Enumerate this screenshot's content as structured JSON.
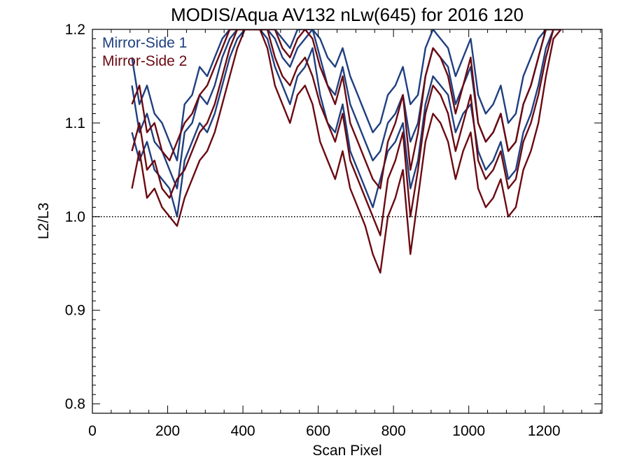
{
  "chart_data": {
    "type": "line",
    "title": "MODIS/Aqua AV132 nLw(645) for 2016 120",
    "xlabel": "Scan Pixel",
    "ylabel": "L2/L3",
    "xlim": [
      0,
      1354
    ],
    "ylim": [
      0.79,
      1.2
    ],
    "xticks": [
      0,
      200,
      400,
      600,
      800,
      1000,
      1200
    ],
    "xtick_labels": [
      "0",
      "200",
      "400",
      "600",
      "800",
      "1000",
      "1200"
    ],
    "yticks": [
      0.8,
      0.9,
      1.0,
      1.1,
      1.2
    ],
    "ytick_labels": [
      "0.8",
      "0.9",
      "1.0",
      "1.1",
      "1.2"
    ],
    "reference_line": {
      "y": 1.0,
      "style": "dotted"
    },
    "legend": {
      "placement": "top-left",
      "entries": [
        "Mirror-Side 1",
        "Mirror-Side 2"
      ]
    },
    "colors": {
      "Mirror-Side 1": "#1f3f7f",
      "Mirror-Side 2": "#6b0a12"
    },
    "x": [
      105,
      125,
      145,
      165,
      185,
      205,
      225,
      245,
      265,
      285,
      305,
      325,
      345,
      365,
      385,
      405,
      425,
      445,
      465,
      485,
      505,
      525,
      545,
      565,
      585,
      605,
      625,
      645,
      665,
      685,
      705,
      725,
      745,
      765,
      785,
      805,
      825,
      845,
      865,
      885,
      905,
      925,
      945,
      965,
      985,
      1005,
      1025,
      1045,
      1065,
      1085,
      1105,
      1125,
      1145,
      1165,
      1185,
      1205,
      1225,
      1245
    ],
    "series": [
      {
        "name": "Mirror-Side 1",
        "values": [
          1.14,
          1.09,
          1.11,
          1.08,
          1.07,
          1.05,
          1.03,
          1.09,
          1.1,
          1.13,
          1.12,
          1.14,
          1.17,
          1.19,
          1.2,
          1.2,
          1.2,
          1.2,
          1.2,
          1.19,
          1.17,
          1.16,
          1.18,
          1.19,
          1.2,
          1.17,
          1.14,
          1.13,
          1.16,
          1.12,
          1.1,
          1.08,
          1.06,
          1.07,
          1.1,
          1.11,
          1.13,
          1.08,
          1.1,
          1.15,
          1.18,
          1.17,
          1.16,
          1.12,
          1.14,
          1.16,
          1.1,
          1.08,
          1.09,
          1.11,
          1.07,
          1.08,
          1.12,
          1.14,
          1.17,
          1.2,
          1.2,
          1.2
        ]
      },
      {
        "name": "Mirror-Side 1",
        "values": [
          1.09,
          1.06,
          1.08,
          1.05,
          1.04,
          1.03,
          1.0,
          1.06,
          1.08,
          1.1,
          1.09,
          1.11,
          1.14,
          1.17,
          1.19,
          1.2,
          1.2,
          1.2,
          1.19,
          1.16,
          1.14,
          1.12,
          1.15,
          1.16,
          1.18,
          1.13,
          1.1,
          1.09,
          1.12,
          1.07,
          1.05,
          1.03,
          1.01,
          1.04,
          1.07,
          1.08,
          1.1,
          1.03,
          1.06,
          1.12,
          1.15,
          1.14,
          1.13,
          1.09,
          1.11,
          1.12,
          1.07,
          1.05,
          1.06,
          1.08,
          1.04,
          1.05,
          1.09,
          1.11,
          1.14,
          1.18,
          1.2,
          1.2
        ]
      },
      {
        "name": "Mirror-Side 1",
        "values": [
          1.17,
          1.12,
          1.14,
          1.11,
          1.1,
          1.08,
          1.06,
          1.12,
          1.13,
          1.16,
          1.15,
          1.17,
          1.19,
          1.2,
          1.2,
          1.2,
          1.2,
          1.2,
          1.2,
          1.2,
          1.19,
          1.18,
          1.2,
          1.2,
          1.2,
          1.19,
          1.17,
          1.16,
          1.18,
          1.15,
          1.13,
          1.11,
          1.09,
          1.1,
          1.13,
          1.14,
          1.16,
          1.12,
          1.13,
          1.18,
          1.2,
          1.19,
          1.18,
          1.15,
          1.17,
          1.19,
          1.13,
          1.11,
          1.12,
          1.14,
          1.1,
          1.11,
          1.15,
          1.17,
          1.19,
          1.2,
          1.2,
          1.2
        ]
      },
      {
        "name": "Mirror-Side 2",
        "values": [
          1.07,
          1.1,
          1.05,
          1.06,
          1.03,
          1.02,
          1.04,
          1.05,
          1.07,
          1.09,
          1.1,
          1.12,
          1.15,
          1.18,
          1.2,
          1.2,
          1.2,
          1.2,
          1.2,
          1.17,
          1.15,
          1.14,
          1.16,
          1.17,
          1.15,
          1.12,
          1.1,
          1.08,
          1.11,
          1.06,
          1.04,
          1.02,
          1.0,
          0.98,
          1.04,
          1.06,
          1.09,
          1.0,
          1.05,
          1.11,
          1.14,
          1.13,
          1.11,
          1.07,
          1.1,
          1.13,
          1.06,
          1.04,
          1.05,
          1.07,
          1.03,
          1.04,
          1.08,
          1.1,
          1.13,
          1.17,
          1.2,
          1.2
        ]
      },
      {
        "name": "Mirror-Side 2",
        "values": [
          1.03,
          1.07,
          1.02,
          1.03,
          1.01,
          1.0,
          0.99,
          1.02,
          1.04,
          1.06,
          1.07,
          1.09,
          1.12,
          1.15,
          1.18,
          1.2,
          1.2,
          1.2,
          1.18,
          1.14,
          1.12,
          1.1,
          1.13,
          1.14,
          1.12,
          1.08,
          1.06,
          1.04,
          1.07,
          1.03,
          1.01,
          0.99,
          0.96,
          0.94,
          1.0,
          1.02,
          1.05,
          0.96,
          1.02,
          1.08,
          1.11,
          1.1,
          1.08,
          1.04,
          1.07,
          1.09,
          1.03,
          1.01,
          1.02,
          1.04,
          1.0,
          1.01,
          1.05,
          1.07,
          1.1,
          1.15,
          1.19,
          1.2
        ]
      },
      {
        "name": "Mirror-Side 2",
        "values": [
          1.12,
          1.14,
          1.09,
          1.1,
          1.07,
          1.06,
          1.08,
          1.1,
          1.11,
          1.13,
          1.14,
          1.16,
          1.18,
          1.2,
          1.2,
          1.2,
          1.2,
          1.2,
          1.2,
          1.2,
          1.18,
          1.17,
          1.19,
          1.2,
          1.19,
          1.16,
          1.14,
          1.12,
          1.15,
          1.1,
          1.08,
          1.06,
          1.04,
          1.03,
          1.08,
          1.1,
          1.13,
          1.05,
          1.09,
          1.15,
          1.18,
          1.17,
          1.15,
          1.11,
          1.14,
          1.17,
          1.1,
          1.08,
          1.09,
          1.11,
          1.07,
          1.08,
          1.12,
          1.14,
          1.17,
          1.2,
          1.2,
          1.2
        ]
      }
    ]
  }
}
